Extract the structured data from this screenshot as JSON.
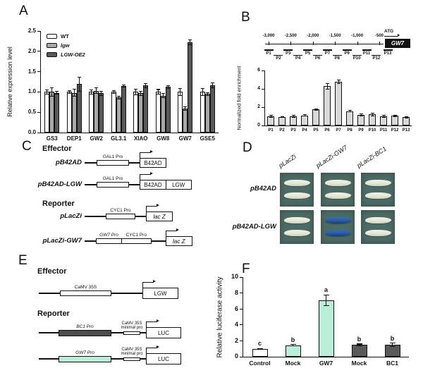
{
  "panels": {
    "A": "A",
    "B": "B",
    "C": "C",
    "D": "D",
    "E": "E",
    "F": "F"
  },
  "colors": {
    "mint": "#b9eed9",
    "dark_bar": "#595959",
    "mid_gray": "#a8a8a8",
    "chip_bar": "#d9d9d9",
    "plate_bg": "#4d6b66",
    "colony_white": "#e9ecdd",
    "colony_blue": "#2a5ea6",
    "axis": "#111111"
  },
  "chart_data": [
    {
      "panel": "A",
      "type": "bar",
      "grouped": true,
      "ylabel": "Relative expression level",
      "categories": [
        "GS3",
        "DEP1",
        "GW2",
        "GL3.1",
        "XIAO",
        "GW8",
        "GW7",
        "GSE5"
      ],
      "ylim": [
        0,
        2.5
      ],
      "ytick_values": [
        0,
        0.5,
        1,
        1.5,
        2,
        2.5
      ],
      "ytick_labels": [
        "0.0",
        "0.5",
        "1.0",
        "1.5",
        "2.0",
        "2.5"
      ],
      "legend_position": "top-left",
      "series": [
        {
          "name": "WT",
          "italic": false,
          "color": "#ffffff",
          "values": [
            1.0,
            1.0,
            1.0,
            1.0,
            1.0,
            1.0,
            1.0,
            1.0
          ],
          "errors": [
            0.05,
            0.03,
            0.05,
            0.04,
            0.07,
            0.06,
            0.08,
            0.08
          ]
        },
        {
          "name": "lgw",
          "italic": true,
          "color": "#a8a8a8",
          "values": [
            1.0,
            0.98,
            1.03,
            0.86,
            0.97,
            0.91,
            0.59,
            0.95
          ],
          "errors": [
            0.1,
            0.09,
            0.07,
            0.04,
            0.05,
            0.05,
            0.04,
            0.03
          ]
        },
        {
          "name": "LGW-OE2",
          "italic": true,
          "color": "#595959",
          "values": [
            0.98,
            1.19,
            0.97,
            1.15,
            1.16,
            1.12,
            2.23,
            1.17
          ],
          "errors": [
            0.03,
            0.18,
            0.05,
            0.03,
            0.05,
            0.04,
            0.06,
            0.06
          ]
        }
      ]
    },
    {
      "panel": "B",
      "type": "bar",
      "ylabel": "Normalized fold enrichment",
      "categories": [
        "P1",
        "P2",
        "P3",
        "P4",
        "P5",
        "P6",
        "P7",
        "P8",
        "P9",
        "P10",
        "P11",
        "P12",
        "P13"
      ],
      "values": [
        1.0,
        0.95,
        1.0,
        1.1,
        1.75,
        4.3,
        4.8,
        1.55,
        1.15,
        1.2,
        1.0,
        1.05,
        0.9
      ],
      "errors": [
        0.1,
        0.05,
        0.09,
        0.08,
        0.08,
        0.3,
        0.2,
        0.08,
        0.1,
        0.15,
        0.12,
        0.08,
        0.08
      ],
      "bar_color": "#d9d9d9",
      "ylim": [
        0,
        6
      ],
      "ytick_values": [
        0,
        2,
        4,
        6
      ],
      "ytick_labels": [
        "0",
        "2",
        "4",
        "6"
      ]
    },
    {
      "panel": "F",
      "type": "bar",
      "ylabel": "Relative luciferase activity",
      "categories": [
        "Control",
        "Mock",
        "GW7",
        "Mock",
        "BC1"
      ],
      "values": [
        1.0,
        1.45,
        7.1,
        1.5,
        1.5
      ],
      "errors": [
        0.06,
        0.07,
        0.65,
        0.1,
        0.2
      ],
      "bar_colors": [
        "#ffffff",
        "#b9eed9",
        "#b9eed9",
        "#595959",
        "#595959"
      ],
      "sig_letters": [
        "c",
        "b",
        "a",
        "b",
        "b"
      ],
      "ylim": [
        0,
        10
      ],
      "ytick_values": [
        0,
        2,
        4,
        6,
        8,
        10
      ],
      "ytick_labels": [
        "0",
        "2",
        "4",
        "6",
        "8",
        "10"
      ]
    }
  ],
  "panelB_diagram": {
    "positions": [
      "-3,000",
      "-2,500",
      "-2,000",
      "-1,500",
      "-1,000",
      "-500"
    ],
    "atg": "ATG",
    "gene": "GW7",
    "fragments": [
      "P1",
      "P2",
      "P3",
      "P4",
      "P5",
      "P6",
      "P7",
      "P8",
      "P9",
      "P10",
      "P11",
      "P12",
      "P13"
    ]
  },
  "panelC": {
    "effector_heading": "Effector",
    "reporter_heading": "Reporter",
    "rows": [
      {
        "label": "pB42AD",
        "parts": [
          {
            "t": "line",
            "w": 17
          },
          {
            "t": "pbox",
            "w": 46,
            "h": 8,
            "label": "GAL1 Pro"
          },
          {
            "t": "line",
            "w": 15
          },
          {
            "t": "gbox",
            "w": 38,
            "h": 14,
            "label": "B42AD",
            "arrow": true
          }
        ]
      },
      {
        "label": "pB42AD-LGW",
        "parts": [
          {
            "t": "line",
            "w": 17
          },
          {
            "t": "pbox",
            "w": 46,
            "h": 8,
            "label": "GAL1 Pro"
          },
          {
            "t": "line",
            "w": 15
          },
          {
            "t": "gbox",
            "w": 38,
            "h": 14,
            "label": "B42AD",
            "arrow": true
          },
          {
            "t": "gbox",
            "w": 37,
            "h": 14,
            "label": "LGW"
          }
        ]
      },
      {
        "label": "pLacZi",
        "parts": [
          {
            "t": "line",
            "w": 30
          },
          {
            "t": "pbox",
            "w": 42,
            "h": 8,
            "label": "CYC1 Pro"
          },
          {
            "t": "line",
            "w": 15
          },
          {
            "t": "gbox",
            "w": 38,
            "h": 14,
            "label": "lac Z",
            "italic": true,
            "arrow": true
          }
        ]
      },
      {
        "label": "pLacZi-GW7",
        "parts": [
          {
            "t": "line",
            "w": 16
          },
          {
            "t": "pbox",
            "w": 37,
            "h": 8,
            "label": "GW7 Pro",
            "italic": true
          },
          {
            "t": "pbox",
            "w": 43,
            "h": 8,
            "label": "CYC1 Pro"
          },
          {
            "t": "line",
            "w": 20
          },
          {
            "t": "gbox",
            "w": 38,
            "h": 14,
            "label": "lac Z",
            "italic": true,
            "arrow": true
          }
        ]
      }
    ]
  },
  "panelD": {
    "column_labels": [
      "pLacZi",
      "pLacZi-GW7",
      "pLacZi-BC1"
    ],
    "row_labels": [
      "pB42AD",
      "pB42AD-LGW"
    ],
    "plates": [
      {
        "colonies": "white"
      },
      {
        "colonies": "white"
      },
      {
        "colonies": "white"
      },
      {
        "colonies": "white"
      },
      {
        "colonies": "blue"
      },
      {
        "colonies": "white"
      }
    ]
  },
  "panelE": {
    "effector_heading": "Effector",
    "reporter_heading": "Reporter",
    "rows": [
      {
        "label": "",
        "parts": [
          {
            "t": "line",
            "w": 30
          },
          {
            "t": "pbox",
            "w": 73,
            "h": 8,
            "label": "CaMV 35S"
          },
          {
            "t": "line",
            "w": 44
          },
          {
            "t": "gbox",
            "w": 51,
            "h": 16,
            "label": "LGW",
            "arrow": true
          }
        ]
      },
      {
        "label": "",
        "parts": [
          {
            "t": "line",
            "w": 28
          },
          {
            "t": "pbox",
            "w": 75,
            "h": 9,
            "label": "BC1 Pro",
            "italic": true,
            "fill": "#4d4d4d"
          },
          {
            "t": "line",
            "w": 17
          },
          {
            "t": "pbox",
            "w": 24,
            "h": 5,
            "label2": [
              "CaMV 35S",
              "minimal pro"
            ]
          },
          {
            "t": "line",
            "w": 8
          },
          {
            "t": "gbox",
            "w": 50,
            "h": 16,
            "label": "LUC",
            "arrow": true
          }
        ]
      },
      {
        "label": "",
        "parts": [
          {
            "t": "line",
            "w": 28
          },
          {
            "t": "pbox",
            "w": 75,
            "h": 9,
            "label": "GW7 Pro",
            "italic": true,
            "fill": "#b9eed9"
          },
          {
            "t": "line",
            "w": 17
          },
          {
            "t": "pbox",
            "w": 24,
            "h": 5,
            "label2": [
              "CaMV 35S",
              "minimal pro"
            ]
          },
          {
            "t": "line",
            "w": 8
          },
          {
            "t": "gbox",
            "w": 50,
            "h": 16,
            "label": "LUC",
            "arrow": true
          }
        ]
      }
    ]
  }
}
